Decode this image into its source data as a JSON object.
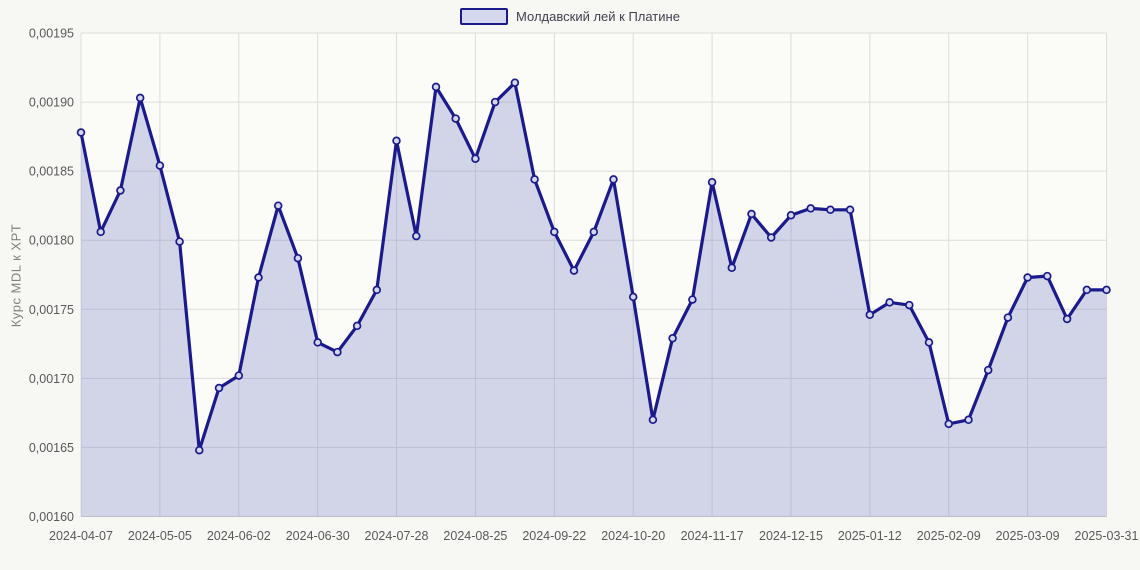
{
  "page": {
    "background": "#f7f7f4"
  },
  "legend": {
    "label": "Молдавский лей к Платине"
  },
  "chart_data": {
    "type": "area",
    "title": "",
    "xlabel": "",
    "ylabel": "Курс MDL к XPT",
    "series_name": "Молдавский лей к Платине",
    "grid": true,
    "legend_position": "top-center",
    "ylim": [
      0.0016,
      0.00195
    ],
    "y_ticks": [
      0.00195,
      0.0019,
      0.00185,
      0.0018,
      0.00175,
      0.0017,
      0.00165,
      0.0016
    ],
    "y_tick_labels": [
      "0,00195",
      "0,00190",
      "0,00185",
      "0,00180",
      "0,00175",
      "0,00170",
      "0,00165",
      "0,00160"
    ],
    "x_tick_indices": [
      0,
      4,
      8,
      12,
      16,
      20,
      24,
      28,
      32,
      36,
      40,
      44,
      48,
      52
    ],
    "x_tick_labels": [
      "2024-04-07",
      "2024-05-05",
      "2024-06-02",
      "2024-06-30",
      "2024-07-28",
      "2024-08-25",
      "2024-09-22",
      "2024-10-20",
      "2024-11-17",
      "2024-12-15",
      "2025-01-12",
      "2025-02-09",
      "2025-03-09",
      "2025-03-31"
    ],
    "x": [
      "2024-04-07",
      "2024-04-14",
      "2024-04-21",
      "2024-04-28",
      "2024-05-05",
      "2024-05-12",
      "2024-05-19",
      "2024-05-26",
      "2024-06-02",
      "2024-06-09",
      "2024-06-16",
      "2024-06-23",
      "2024-06-30",
      "2024-07-07",
      "2024-07-14",
      "2024-07-21",
      "2024-07-28",
      "2024-08-04",
      "2024-08-11",
      "2024-08-18",
      "2024-08-25",
      "2024-09-01",
      "2024-09-08",
      "2024-09-15",
      "2024-09-22",
      "2024-09-29",
      "2024-10-06",
      "2024-10-13",
      "2024-10-20",
      "2024-10-27",
      "2024-11-03",
      "2024-11-10",
      "2024-11-17",
      "2024-11-24",
      "2024-12-01",
      "2024-12-08",
      "2024-12-15",
      "2024-12-22",
      "2024-12-29",
      "2025-01-05",
      "2025-01-12",
      "2025-01-19",
      "2025-01-26",
      "2025-02-02",
      "2025-02-09",
      "2025-02-16",
      "2025-02-23",
      "2025-03-02",
      "2025-03-09",
      "2025-03-16",
      "2025-03-23",
      "2025-03-30",
      "2025-03-31"
    ],
    "values": [
      0.001878,
      0.001806,
      0.001836,
      0.001903,
      0.001854,
      0.001799,
      0.001648,
      0.001693,
      0.001702,
      0.001773,
      0.001825,
      0.001787,
      0.001726,
      0.001719,
      0.001738,
      0.001764,
      0.001872,
      0.001803,
      0.001911,
      0.001888,
      0.001859,
      0.0019,
      0.001914,
      0.001844,
      0.001806,
      0.001778,
      0.001806,
      0.001844,
      0.001759,
      0.00167,
      0.001729,
      0.001757,
      0.001842,
      0.00178,
      0.001819,
      0.001802,
      0.001818,
      0.001823,
      0.001822,
      0.001822,
      0.001746,
      0.001755,
      0.001753,
      0.001726,
      0.001667,
      0.00167,
      0.001706,
      0.001744,
      0.001773,
      0.001774,
      0.001743,
      0.001764,
      0.001764
    ],
    "colors": {
      "line": "#1a1a8c",
      "area": "rgba(117,123,197,0.30)",
      "marker_fill": "#d5d7ec",
      "plot_background": "#fbfbf8",
      "grid": "#dcdcdc",
      "grid_bottom": "#c9c9c9",
      "axis_text": "#58595b",
      "axis_title": "#808080"
    }
  }
}
